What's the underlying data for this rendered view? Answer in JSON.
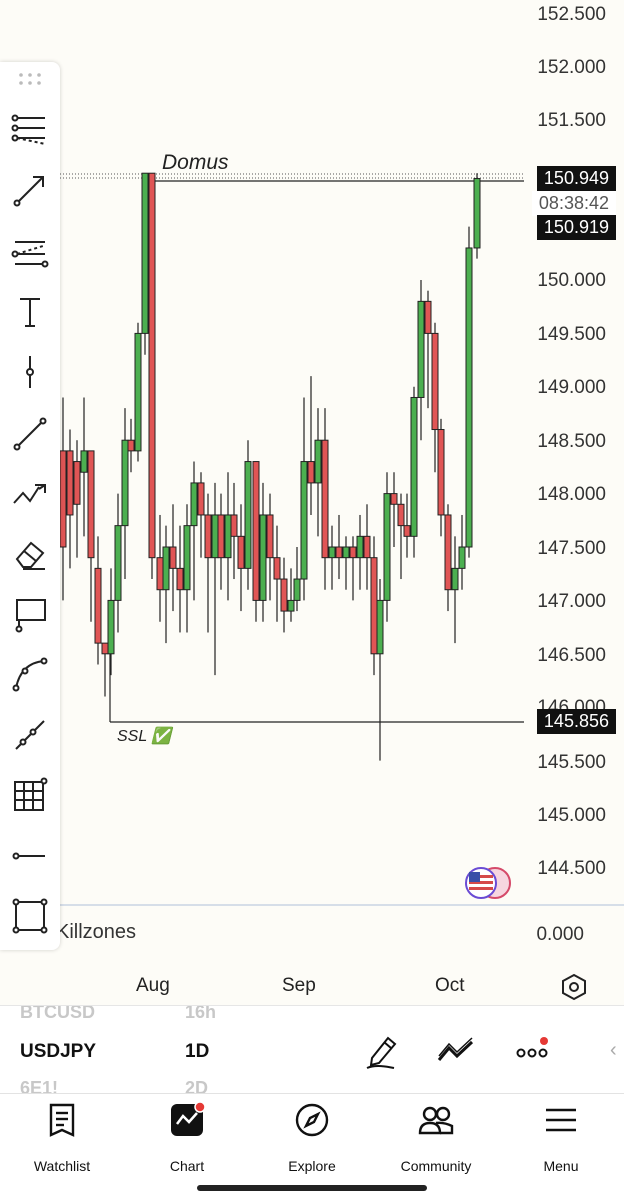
{
  "chart": {
    "prices": [
      "152.500",
      "152.000",
      "151.500",
      "150.000",
      "149.500",
      "149.000",
      "148.500",
      "148.000",
      "147.500",
      "147.000",
      "146.500",
      "146.000",
      "145.500",
      "145.000",
      "144.500"
    ],
    "annotations": {
      "domus": "Domus",
      "ssl": "SSL ✅"
    },
    "tags": {
      "current_price": "150.949",
      "countdown": "08:38:42",
      "line_price": "150.919",
      "ssl_price": "145.856"
    },
    "indicator": {
      "name": "Killzones",
      "value": "0.000"
    },
    "months": [
      "Aug",
      "Sep",
      "Oct"
    ],
    "colors": {
      "up": "#4caf50",
      "down": "#e05555",
      "outline": "#222222"
    }
  },
  "symbols": {
    "above": {
      "symbol": "BTCUSD",
      "interval": "16h"
    },
    "current": {
      "symbol": "USDJPY",
      "interval": "1D"
    },
    "below": {
      "symbol": "6E1!",
      "interval": "2D"
    }
  },
  "nav": [
    {
      "label": "Watchlist",
      "icon": "watchlist-icon"
    },
    {
      "label": "Chart",
      "icon": "chart-icon"
    },
    {
      "label": "Explore",
      "icon": "compass-icon"
    },
    {
      "label": "Community",
      "icon": "community-icon"
    },
    {
      "label": "Menu",
      "icon": "menu-icon"
    }
  ]
}
